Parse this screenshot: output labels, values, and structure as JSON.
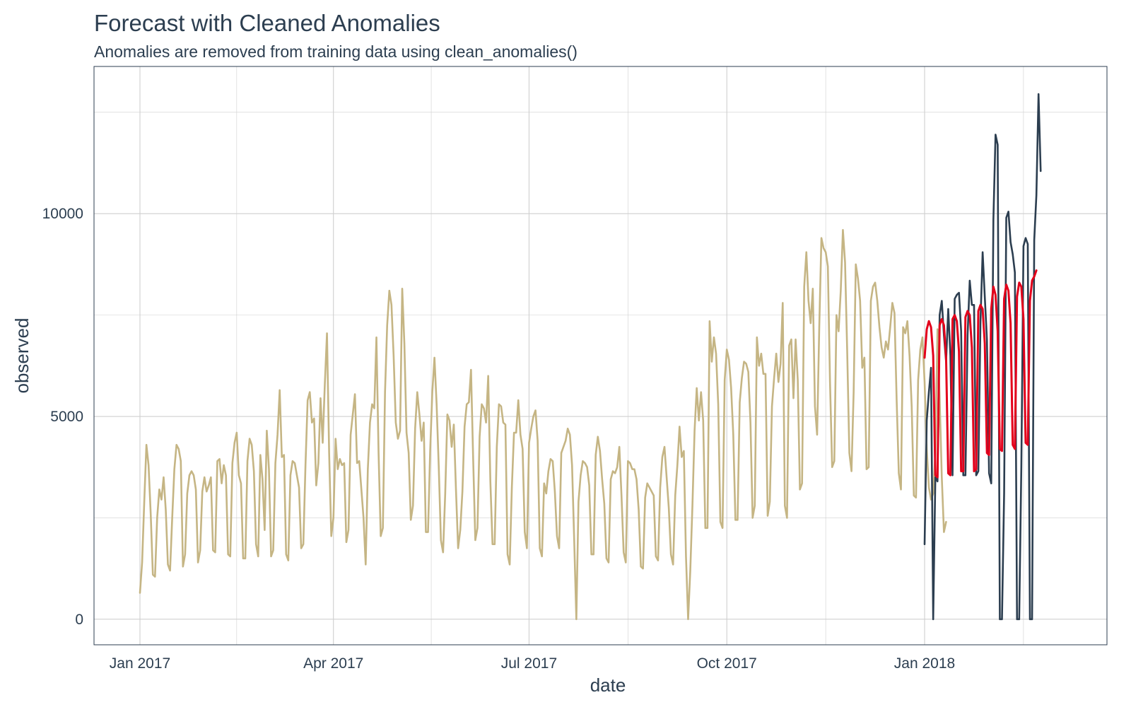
{
  "chart_data": {
    "type": "line",
    "title": "Forecast with Cleaned Anomalies",
    "subtitle": "Anomalies are removed from training data using clean_anomalies()",
    "xlabel": "date",
    "ylabel": "observed",
    "x_ticks": [
      "Jan 2017",
      "Apr 2017",
      "Jul 2017",
      "Oct 2017",
      "Jan 2018"
    ],
    "y_ticks": [
      "0",
      "5000",
      "10000"
    ],
    "ylim": [
      -630,
      13630
    ],
    "grid": true,
    "colors": {
      "train": "#c5b584",
      "actual": "#2c3e50",
      "forecast": "#e3001b",
      "grid": "#cfcfcf",
      "panel_border": "#2c3e50"
    },
    "series": [
      {
        "key": "train",
        "x_start": "2017-01-01",
        "x_step_days": 1,
        "values": [
          650,
          1400,
          2900,
          4300,
          3800,
          2600,
          1100,
          1050,
          2500,
          3200,
          2950,
          3500,
          2700,
          1350,
          1200,
          2500,
          3700,
          4300,
          4200,
          3900,
          1300,
          1600,
          3100,
          3550,
          3650,
          3550,
          3200,
          1400,
          1700,
          3150,
          3500,
          3150,
          3300,
          3500,
          1700,
          1650,
          3900,
          3950,
          3350,
          3800,
          3550,
          1600,
          1550,
          3850,
          4350,
          4600,
          3550,
          3350,
          1500,
          1500,
          3900,
          4450,
          4300,
          3650,
          1850,
          1550,
          4050,
          3450,
          2200,
          4650,
          3700,
          1550,
          1700,
          3850,
          4550,
          5650,
          4000,
          4050,
          1600,
          1450,
          3550,
          3900,
          3850,
          3550,
          3250,
          1750,
          1850,
          3800,
          5400,
          5600,
          4850,
          4950,
          3300,
          3850,
          5450,
          4350,
          5800,
          7050,
          4100,
          2050,
          2500,
          4450,
          3700,
          3950,
          3800,
          3850,
          1900,
          2200,
          4550,
          5050,
          5550,
          3850,
          3900,
          3200,
          2500,
          1350,
          3700,
          4850,
          5300,
          5200,
          6950,
          4100,
          2050,
          2250,
          5600,
          7250,
          8100,
          7750,
          6500,
          4850,
          4450,
          4650,
          8150,
          6800,
          4600,
          4100,
          2450,
          2800,
          4700,
          5600,
          5050,
          4400,
          4850,
          2150,
          2150,
          4150,
          5600,
          6450,
          5300,
          3750,
          1950,
          1650,
          3100,
          5050,
          4900,
          4250,
          4800,
          3200,
          1750,
          2200,
          3150,
          4750,
          5300,
          5350,
          6150,
          3950,
          1950,
          2250,
          4500,
          5300,
          5200,
          4850,
          6000,
          3400,
          1850,
          1850,
          4250,
          5300,
          5250,
          4850,
          4800,
          1600,
          1350,
          3250,
          4600,
          4600,
          5400,
          4550,
          4200,
          2150,
          1750,
          4350,
          4700,
          5000,
          5150,
          4400,
          1750,
          1550,
          3350,
          3100,
          3650,
          3950,
          3900,
          3150,
          2050,
          1750,
          4100,
          4250,
          4400,
          4700,
          4550,
          3800,
          1950,
          0,
          2900,
          3550,
          3900,
          3850,
          3750,
          3300,
          1600,
          1600,
          4050,
          4500,
          4150,
          3450,
          2850,
          1500,
          1400,
          3450,
          3650,
          3600,
          3750,
          4250,
          3050,
          1650,
          1400,
          3900,
          3850,
          3700,
          3700,
          3450,
          2700,
          1300,
          1250,
          3000,
          3350,
          3250,
          3150,
          3050,
          1550,
          1450,
          3250,
          4000,
          4250,
          3500,
          2750,
          1600,
          1350,
          3050,
          3800,
          4750,
          4000,
          4150,
          1550,
          0,
          1200,
          2800,
          4650,
          5700,
          4900,
          5600,
          4900,
          2250,
          2250,
          7350,
          6350,
          6950,
          6550,
          5300,
          2400,
          2250,
          5900,
          6650,
          6400,
          5700,
          4550,
          2450,
          2450,
          5350,
          5950,
          6350,
          6300,
          6100,
          4850,
          2500,
          2800,
          6950,
          6250,
          6550,
          6050,
          6050,
          2550,
          2900,
          5250,
          5950,
          6550,
          5850,
          6300,
          7800,
          2800,
          2500,
          6750,
          6900,
          5450,
          6900,
          5900,
          3200,
          3350,
          8200,
          9050,
          7850,
          7300,
          8150,
          5250,
          4550,
          7200,
          9400,
          9150,
          9050,
          8700,
          5850,
          3750,
          3900,
          7500,
          7100,
          8100,
          9600,
          8800,
          6600,
          4100,
          3650,
          5600,
          8750,
          8400,
          7850,
          6200,
          6450,
          3700,
          3750,
          7850,
          8200,
          8300,
          7850,
          7200,
          6700,
          6450,
          6850,
          6650,
          7200,
          7800,
          7550,
          5400,
          3600,
          3200,
          7200,
          7050,
          7350,
          6500,
          5250,
          3050,
          3000,
          5900,
          6650,
          6950,
          5850,
          4200,
          3250,
          2950,
          3100,
          4100,
          7150,
          5450,
          3500,
          2150,
          2400
        ]
      },
      {
        "key": "actual",
        "x_start": "2018-01-01",
        "x_step_days": 1,
        "values": [
          1850,
          4900,
          5600,
          6200,
          0,
          3500,
          3400,
          7500,
          7850,
          7000,
          6350,
          7650,
          6500,
          3550,
          7900,
          8000,
          8050,
          7100,
          3550,
          3550,
          7000,
          8350,
          7750,
          7750,
          3550,
          3650,
          7350,
          9050,
          7950,
          6900,
          3600,
          3350,
          9850,
          11950,
          11700,
          0,
          0,
          3100,
          9900,
          10050,
          9300,
          9000,
          8550,
          0,
          0,
          3750,
          9200,
          9400,
          9250,
          0,
          0,
          9350,
          10450,
          12950,
          11050
        ]
      },
      {
        "key": "forecast",
        "x_start": "2018-01-01",
        "x_step_days": 1,
        "values": [
          6450,
          7150,
          7350,
          7200,
          6500,
          3550,
          3500,
          7250,
          7400,
          7250,
          6450,
          3600,
          3550,
          7400,
          7500,
          7350,
          6600,
          3650,
          3650,
          7450,
          7600,
          7500,
          6700,
          3650,
          3700,
          7600,
          7750,
          7650,
          6800,
          4100,
          4050,
          7650,
          8200,
          8000,
          7100,
          4200,
          4150,
          7900,
          8250,
          8100,
          7300,
          4300,
          4200,
          7950,
          8300,
          8200,
          7400,
          4350,
          4300,
          7850,
          8350,
          8450,
          8600
        ]
      }
    ]
  }
}
